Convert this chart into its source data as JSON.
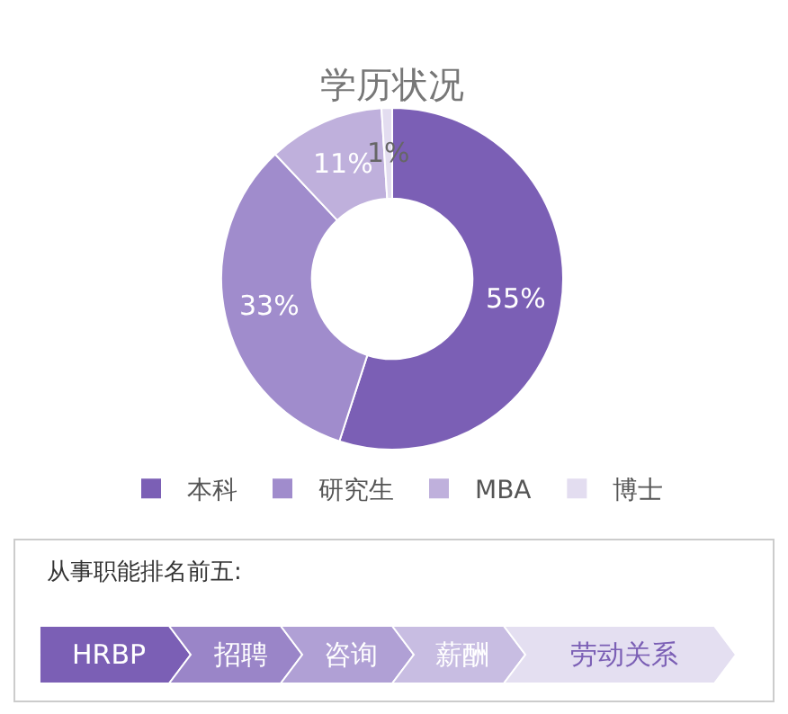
{
  "chart_data": [
    {
      "type": "donut",
      "title": "学历状况",
      "categories": [
        "本科",
        "研究生",
        "MBA",
        "博士"
      ],
      "values": [
        55,
        33,
        11,
        1
      ],
      "value_labels": [
        "55%",
        "33%",
        "11%",
        "1%"
      ],
      "colors": [
        "#7b5fb5",
        "#a08ccc",
        "#bfb0dc",
        "#e3ddf0"
      ],
      "legend": "bottom"
    },
    {
      "type": "other",
      "title": "从事职能排名前五:",
      "categories": [
        "HRBP",
        "招聘",
        "咨询",
        "薪酬",
        "劳动关系"
      ],
      "colors": [
        "#7b5fb5",
        "#9a85c8",
        "#b0a0d5",
        "#c8bde2",
        "#e4dff1"
      ]
    }
  ]
}
